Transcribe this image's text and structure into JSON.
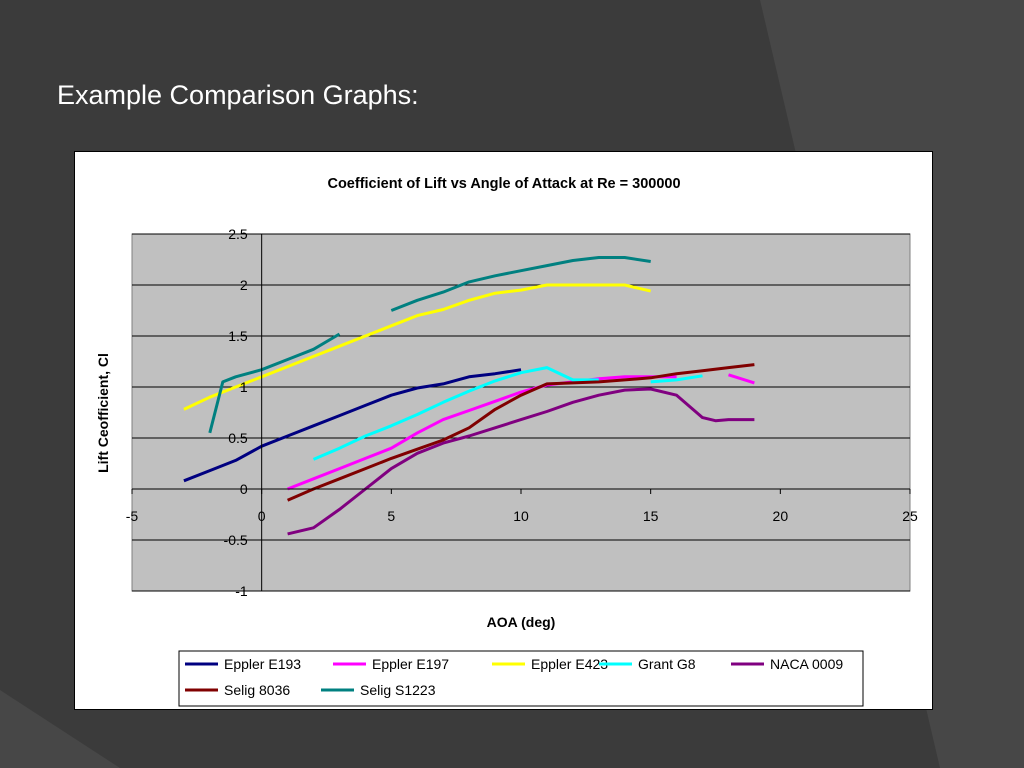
{
  "slide": {
    "title": "Example Comparison Graphs:"
  },
  "chart_data": {
    "type": "line",
    "title": "Coefficient of Lift vs Angle of Attack at Re = 300000",
    "xlabel": "AOA (deg)",
    "ylabel": "Lift Ceofficient, Cl",
    "xlim": [
      -5,
      25
    ],
    "ylim": [
      -1,
      2.5
    ],
    "xticks": [
      -5,
      0,
      5,
      10,
      15,
      20,
      25
    ],
    "yticks": [
      -1,
      -0.5,
      0,
      0.5,
      1,
      1.5,
      2,
      2.5
    ],
    "xtick_labels": [
      "-5",
      "0",
      "5",
      "10",
      "15",
      "20",
      "25"
    ],
    "ytick_labels": [
      "-1",
      "-0.5",
      "0",
      "0.5",
      "1",
      "1.5",
      "2",
      "2.5"
    ],
    "grid": "horizontal major",
    "legend_position": "bottom",
    "plot_background": "#c0c0c0",
    "series": [
      {
        "name": "Eppler E193",
        "color": "#000080",
        "points": [
          [
            -3,
            0.08
          ],
          [
            -2,
            0.18
          ],
          [
            -1,
            0.28
          ],
          [
            0,
            0.42
          ],
          [
            1,
            0.52
          ],
          [
            2,
            0.62
          ],
          [
            3,
            0.72
          ],
          [
            4,
            0.82
          ],
          [
            5,
            0.92
          ],
          [
            6,
            0.99
          ],
          [
            7,
            1.03
          ],
          [
            8,
            1.1
          ],
          [
            9,
            1.13
          ],
          [
            10,
            1.17
          ]
        ]
      },
      {
        "name": "Eppler E197",
        "color": "#ff00ff",
        "points": [
          [
            1,
            0
          ],
          [
            2,
            0.1
          ],
          [
            3,
            0.2
          ],
          [
            4,
            0.3
          ],
          [
            5,
            0.4
          ],
          [
            6,
            0.55
          ],
          [
            7,
            0.68
          ],
          [
            8,
            0.77
          ],
          [
            9,
            0.86
          ],
          [
            10,
            0.95
          ],
          [
            11,
            1.02
          ],
          [
            12,
            1.05
          ],
          [
            13,
            1.08
          ],
          [
            14,
            1.1
          ],
          [
            15,
            1.1
          ],
          [
            16,
            1.1
          ],
          null,
          [
            18,
            1.12
          ],
          [
            19,
            1.04
          ]
        ]
      },
      {
        "name": "Eppler E423",
        "color": "#ffff00",
        "points": [
          [
            -3,
            0.78
          ],
          [
            -2,
            0.9
          ],
          [
            -1,
            1.0
          ],
          [
            0,
            1.1
          ],
          [
            1,
            1.2
          ],
          [
            2,
            1.3
          ],
          [
            3,
            1.4
          ],
          [
            4,
            1.5
          ],
          [
            5,
            1.6
          ],
          [
            6,
            1.7
          ],
          [
            7,
            1.76
          ],
          [
            8,
            1.85
          ],
          [
            9,
            1.92
          ],
          [
            10,
            1.95
          ],
          [
            11,
            2.0
          ],
          [
            12,
            2.0
          ],
          [
            13,
            2.0
          ],
          [
            14,
            2.0
          ],
          [
            15,
            1.94
          ]
        ]
      },
      {
        "name": "Grant G8",
        "color": "#00ffff",
        "points": [
          [
            2,
            0.29
          ],
          [
            3,
            0.4
          ],
          [
            4,
            0.52
          ],
          [
            5,
            0.62
          ],
          [
            6,
            0.73
          ],
          [
            7,
            0.85
          ],
          [
            8,
            0.96
          ],
          [
            9,
            1.06
          ],
          [
            10,
            1.14
          ],
          [
            11,
            1.19
          ],
          [
            12,
            1.07
          ],
          [
            13,
            1.07
          ],
          null,
          [
            15,
            1.05
          ],
          [
            16,
            1.07
          ],
          [
            17,
            1.11
          ]
        ]
      },
      {
        "name": "NACA 0009",
        "color": "#800080",
        "points": [
          [
            1,
            -0.44
          ],
          [
            2,
            -0.38
          ],
          [
            3,
            -0.2
          ],
          [
            4,
            0
          ],
          [
            5,
            0.2
          ],
          [
            6,
            0.35
          ],
          [
            7,
            0.45
          ],
          [
            8,
            0.52
          ],
          [
            9,
            0.6
          ],
          [
            10,
            0.68
          ],
          [
            11,
            0.76
          ],
          [
            12,
            0.85
          ],
          [
            13,
            0.92
          ],
          [
            14,
            0.97
          ],
          [
            15,
            0.98
          ],
          [
            16,
            0.92
          ],
          [
            17,
            0.7
          ],
          [
            17.5,
            0.67
          ],
          [
            18,
            0.68
          ],
          [
            19,
            0.68
          ]
        ]
      },
      {
        "name": "Selig 8036",
        "color": "#800000",
        "points": [
          [
            1,
            -0.11
          ],
          [
            2,
            0
          ],
          [
            3,
            0.1
          ],
          [
            4,
            0.2
          ],
          [
            5,
            0.3
          ],
          [
            6,
            0.39
          ],
          [
            7,
            0.48
          ],
          [
            8,
            0.6
          ],
          [
            9,
            0.78
          ],
          [
            10,
            0.92
          ],
          [
            11,
            1.03
          ],
          [
            12,
            1.04
          ],
          [
            13,
            1.05
          ],
          [
            14,
            1.07
          ],
          [
            15,
            1.09
          ],
          [
            16,
            1.13
          ],
          [
            17,
            1.16
          ],
          [
            18,
            1.19
          ],
          [
            19,
            1.22
          ]
        ]
      },
      {
        "name": "Selig S1223",
        "color": "#008080",
        "points": [
          [
            -2,
            0.55
          ],
          [
            -1.5,
            1.05
          ],
          [
            -1,
            1.1
          ],
          [
            0,
            1.17
          ],
          [
            1,
            1.27
          ],
          [
            2,
            1.37
          ],
          [
            3,
            1.52
          ],
          null,
          [
            5,
            1.75
          ],
          [
            6,
            1.85
          ],
          [
            7,
            1.93
          ],
          [
            8,
            2.03
          ],
          [
            9,
            2.09
          ],
          [
            10,
            2.14
          ],
          [
            11,
            2.19
          ],
          [
            12,
            2.24
          ],
          [
            13,
            2.27
          ],
          [
            14,
            2.27
          ],
          [
            15,
            2.23
          ]
        ]
      }
    ]
  }
}
